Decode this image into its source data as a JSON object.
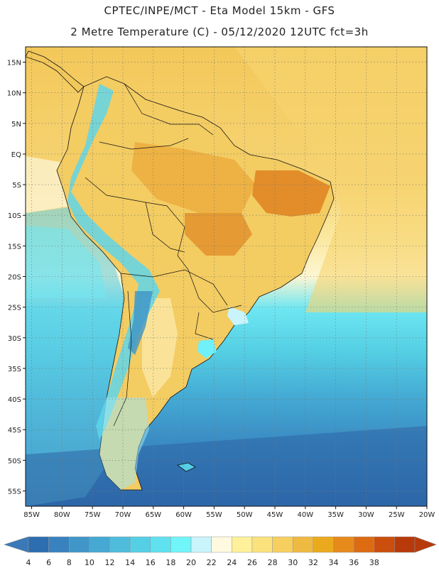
{
  "title": {
    "line1": "CPTEC/INPE/MCT -  Eta Model 15km - GFS",
    "line2": "2 Metre Temperature (C) - 05/12/2020 12UTC fct=3h"
  },
  "axes": {
    "lat_labels": [
      "15N",
      "10N",
      "5N",
      "EQ",
      "5S",
      "10S",
      "15S",
      "20S",
      "25S",
      "30S",
      "35S",
      "40S",
      "45S",
      "50S",
      "55S"
    ],
    "lat_values": [
      15,
      10,
      5,
      0,
      -5,
      -10,
      -15,
      -20,
      -25,
      -30,
      -35,
      -40,
      -45,
      -50,
      -55
    ],
    "lon_labels": [
      "85W",
      "80W",
      "75W",
      "70W",
      "65W",
      "60W",
      "55W",
      "50W",
      "45W",
      "40W",
      "35W",
      "30W",
      "25W",
      "20W"
    ],
    "lon_values": [
      -85,
      -80,
      -75,
      -70,
      -65,
      -60,
      -55,
      -50,
      -45,
      -40,
      -35,
      -30,
      -25,
      -20
    ],
    "lat_range": [
      -57.5,
      17.5
    ],
    "lon_range": [
      -86,
      -20
    ]
  },
  "colorbar": {
    "labels": [
      "4",
      "6",
      "8",
      "10",
      "12",
      "14",
      "16",
      "18",
      "20",
      "22",
      "24",
      "26",
      "28",
      "30",
      "32",
      "34",
      "36",
      "38"
    ],
    "colors": [
      "#2c6eb0",
      "#3782bf",
      "#4096c8",
      "#45a9d3",
      "#4fbcdc",
      "#55cfe6",
      "#5fe1ef",
      "#70f5f9",
      "#c9f4fb",
      "#fff9df",
      "#fff19a",
      "#fbe27d",
      "#f6cf5f",
      "#efba42",
      "#ebaa1e",
      "#e68a1c",
      "#dc6b12",
      "#cb4e0c",
      "#b8390a"
    ],
    "low_color": "#3a78b8",
    "high_color": "#b8390a"
  }
}
